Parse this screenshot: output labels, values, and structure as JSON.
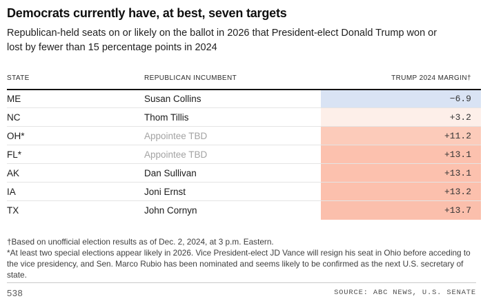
{
  "header": {
    "title": "Democrats currently have, at best, seven targets",
    "subtitle": "Republican-held seats on or likely on the ballot in 2026 that President-elect Donald Trump won or lost by fewer than 15 percentage points in 2024"
  },
  "table": {
    "columns": [
      "STATE",
      "REPUBLICAN INCUMBENT",
      "TRUMP 2024 MARGIN†"
    ],
    "rows": [
      {
        "state": "ME",
        "incumbent": "Susan Collins",
        "incumbent_muted": false,
        "margin": "−6.9",
        "cell_bg": "#d9e3f4"
      },
      {
        "state": "NC",
        "incumbent": "Thom Tillis",
        "incumbent_muted": false,
        "margin": "+3.2",
        "cell_bg": "#fdefe9"
      },
      {
        "state": "OH*",
        "incumbent": "Appointee TBD",
        "incumbent_muted": true,
        "margin": "+11.2",
        "cell_bg": "#fccbba"
      },
      {
        "state": "FL*",
        "incumbent": "Appointee TBD",
        "incumbent_muted": true,
        "margin": "+13.1",
        "cell_bg": "#fcc1ae"
      },
      {
        "state": "AK",
        "incumbent": "Dan Sullivan",
        "incumbent_muted": false,
        "margin": "+13.1",
        "cell_bg": "#fcc1ae"
      },
      {
        "state": "IA",
        "incumbent": "Joni Ernst",
        "incumbent_muted": false,
        "margin": "+13.2",
        "cell_bg": "#fcc0ad"
      },
      {
        "state": "TX",
        "incumbent": "John Cornyn",
        "incumbent_muted": false,
        "margin": "+13.7",
        "cell_bg": "#fbbfac"
      }
    ]
  },
  "footnotes": {
    "dagger": "†Based on unofficial election results as of Dec. 2, 2024, at 3 p.m. Eastern.",
    "asterisk": "*At least two special elections appear likely in 2026. Vice President-elect JD Vance will resign his seat in Ohio before acceding to the vice presidency, and Sen. Marco Rubio has been nominated and seems likely to be confirmed as the next U.S. secretary of state."
  },
  "footer": {
    "brand": "538",
    "source": "SOURCE: ABC NEWS, U.S. SENATE"
  },
  "colors": {
    "negative_margin_blue": "#d9e3f4",
    "positive_margin_red_light": "#fdefe9",
    "positive_margin_red_strong": "#fbbfac",
    "header_underline": "#111111",
    "row_divider": "#e4e4e4",
    "muted_text": "#a3a3a3"
  },
  "chart_data": {
    "type": "table",
    "title": "Democrats currently have, at best, seven targets",
    "subtitle": "Republican-held seats on or likely on the ballot in 2026 that President-elect Donald Trump won or lost by fewer than 15 percentage points in 2024",
    "columns": [
      "STATE",
      "REPUBLICAN INCUMBENT",
      "TRUMP 2024 MARGIN†"
    ],
    "rows": [
      [
        "ME",
        "Susan Collins",
        -6.9
      ],
      [
        "NC",
        "Thom Tillis",
        3.2
      ],
      [
        "OH*",
        "Appointee TBD",
        11.2
      ],
      [
        "FL*",
        "Appointee TBD",
        13.1
      ],
      [
        "AK",
        "Dan Sullivan",
        13.1
      ],
      [
        "IA",
        "Joni Ernst",
        13.2
      ],
      [
        "TX",
        "John Cornyn",
        13.7
      ]
    ],
    "value_domain": [
      -15,
      15
    ],
    "color_encoding": "margin cell shaded light blue for negative (Trump loss) and increasingly saturated salmon/red for larger positive Trump margins",
    "footnote_dagger": "Based on unofficial election results as of Dec. 2, 2024, at 3 p.m. Eastern.",
    "footnote_asterisk": "At least two special elections appear likely in 2026. Vice President-elect JD Vance will resign his seat in Ohio before acceding to the vice presidency, and Sen. Marco Rubio has been nominated and seems likely to be confirmed as the next U.S. secretary of state.",
    "source": "ABC NEWS, U.S. SENATE"
  }
}
